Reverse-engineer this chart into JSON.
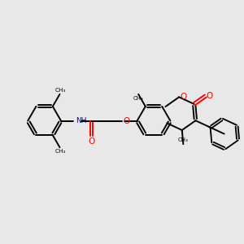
{
  "bg_color": "#e8e8e8",
  "bond_color": "#000000",
  "bond_width": 1.4,
  "N_color": "#0000cd",
  "O_color": "#ff0000",
  "text_color": "#000000",
  "figsize": [
    3.0,
    3.0
  ],
  "dpi": 100,
  "xlim": [
    0,
    10
  ],
  "ylim": [
    0,
    10
  ]
}
